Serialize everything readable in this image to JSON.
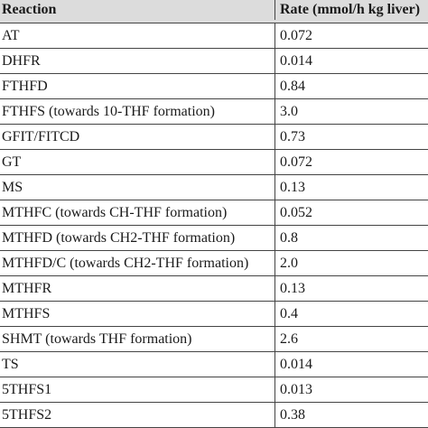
{
  "table": {
    "header": [
      "Reaction",
      "Rate (mmol/h kg liver)"
    ],
    "rows": [
      [
        "AT",
        "0.072"
      ],
      [
        "DHFR",
        "0.014"
      ],
      [
        "FTHFD",
        "0.84"
      ],
      [
        "FTHFS (towards 10-THF formation)",
        "3.0"
      ],
      [
        "GFIT/FITCD",
        "0.73"
      ],
      [
        "GT",
        "0.072"
      ],
      [
        "MS",
        "0.13"
      ],
      [
        "MTHFC (towards CH-THF formation)",
        "0.052"
      ],
      [
        "MTHFD (towards CH2-THF formation)",
        "0.8"
      ],
      [
        "MTHFD/C (towards CH2-THF formation)",
        "2.0"
      ],
      [
        "MTHFR",
        "0.13"
      ],
      [
        "MTHFS",
        "0.4"
      ],
      [
        "SHMT (towards THF formation)",
        "2.6"
      ],
      [
        "TS",
        "0.014"
      ],
      [
        "5THFS1",
        "0.013"
      ],
      [
        "5THFS2",
        "0.38"
      ]
    ]
  }
}
